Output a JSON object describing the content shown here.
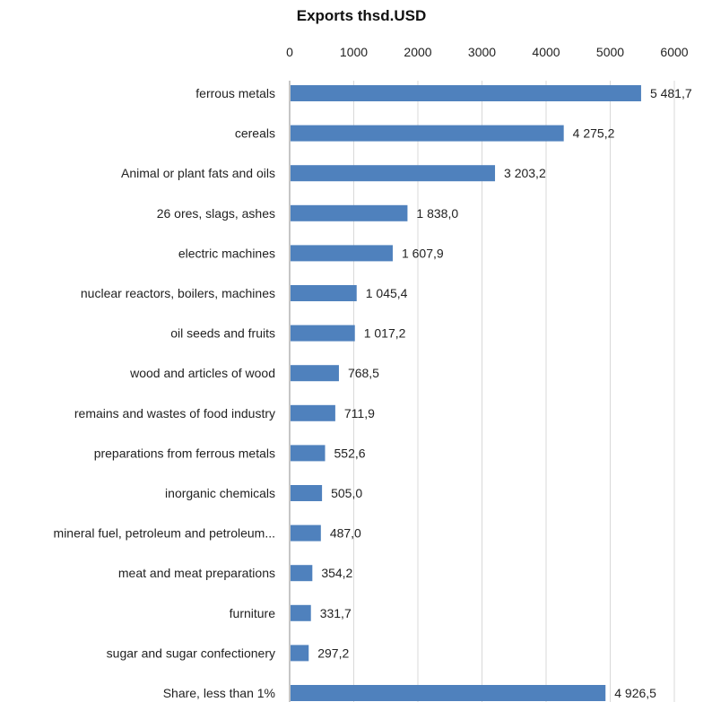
{
  "chart_data": {
    "type": "bar",
    "orientation": "horizontal",
    "title": "Exports thsd.USD",
    "xlabel": "",
    "ylabel": "",
    "xlim": [
      0,
      6000
    ],
    "x_ticks": [
      "0",
      "1000",
      "2000",
      "3000",
      "4000",
      "5000",
      "6000"
    ],
    "x_axis_position": "top",
    "grid": true,
    "legend": "none",
    "bar_color": "#4f81bd",
    "gridline_color": "#d9d9d9",
    "categories": [
      "ferrous metals",
      "cereals",
      "Animal or plant fats and oils",
      "26 ores, slags, ashes",
      "electric machines",
      "nuclear reactors, boilers, machines",
      "oil seeds and fruits",
      "wood and articles  of wood",
      "remains and wastes of food industry",
      "preparations from ferrous metals",
      "inorganic chemicals",
      "mineral fuel, petroleum and petroleum...",
      "meat and meat preparations",
      "furniture",
      "sugar and sugar confectionery",
      "Share, less than 1%"
    ],
    "values": [
      5481.7,
      4275.2,
      3203.2,
      1838.0,
      1607.9,
      1045.4,
      1017.2,
      768.5,
      711.9,
      552.6,
      505.0,
      487.0,
      354.2,
      331.7,
      297.2,
      4926.5
    ],
    "data_labels": [
      "5 481,7",
      "4 275,2",
      "3 203,2",
      "1 838,0",
      "1 607,9",
      "1 045,4",
      "1 017,2",
      "768,5",
      "711,9",
      "552,6",
      "505,0",
      "487,0",
      "354,2",
      "331,7",
      "297,2",
      "4 926,5"
    ]
  }
}
